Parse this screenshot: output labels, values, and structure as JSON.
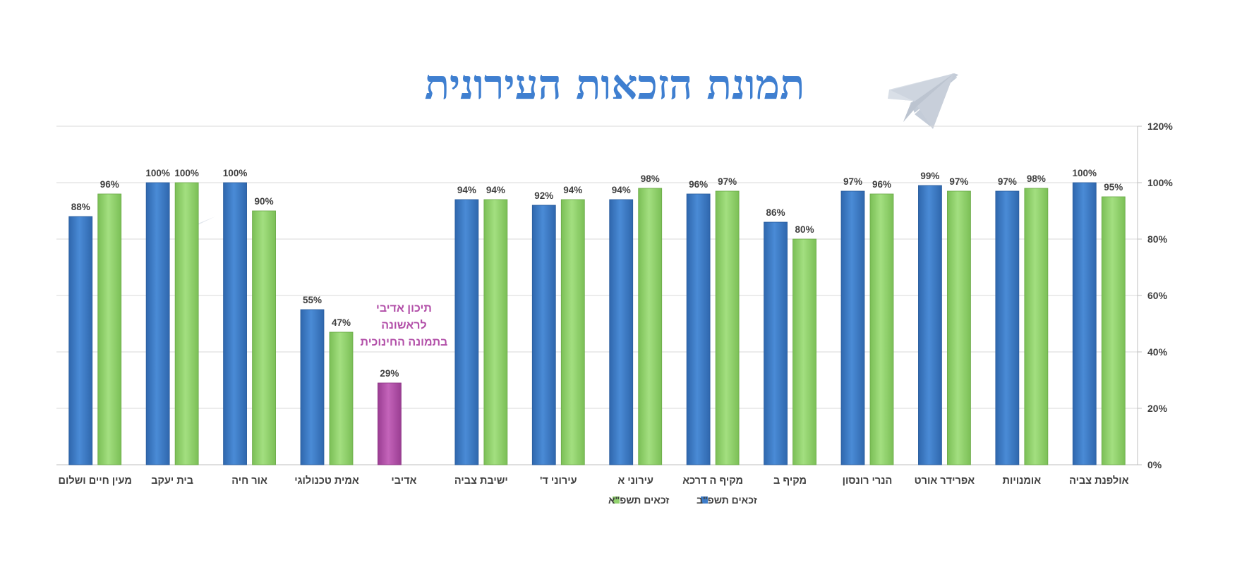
{
  "chart_data": {
    "type": "bar",
    "title": "תמונת הזכאות העירונית",
    "categories": [
      "מעין חיים ושלום",
      "בית יעקב",
      "אור חיה",
      "אמית טכנולוגי",
      "אדיבי",
      "ישיבת צביה",
      "עירוני ד'",
      "עירוני א",
      "מקיף ה דרכא",
      "מקיף ב",
      "הנרי רונסון",
      "אפרידר אורט",
      "אומנויות",
      "אולפנת צביה"
    ],
    "series": [
      {
        "name": "זכאים תשפ\"ב",
        "color": "#3d7cc9",
        "values": [
          88,
          100,
          100,
          55,
          29,
          94,
          92,
          94,
          96,
          86,
          97,
          99,
          97,
          100
        ]
      },
      {
        "name": "זכאים תשפ\"א",
        "color": "#92d36e",
        "values": [
          96,
          100,
          90,
          47,
          null,
          94,
          94,
          98,
          97,
          80,
          96,
          97,
          98,
          95
        ]
      }
    ],
    "highlight": {
      "category": "אדיבי",
      "series": "זכאים תשפ\"ב",
      "color": "#b24fa8"
    },
    "annotation": {
      "lines": [
        "תיכון אדיבי",
        "לראשונה",
        "בתמונה החינוכית"
      ],
      "color": "#b24fa8"
    },
    "yticks": [
      "0%",
      "20%",
      "40%",
      "60%",
      "80%",
      "100%",
      "120%"
    ],
    "ylim": [
      0,
      120
    ],
    "grid": true,
    "y_axis_side": "right",
    "legend_position": "bottom"
  }
}
